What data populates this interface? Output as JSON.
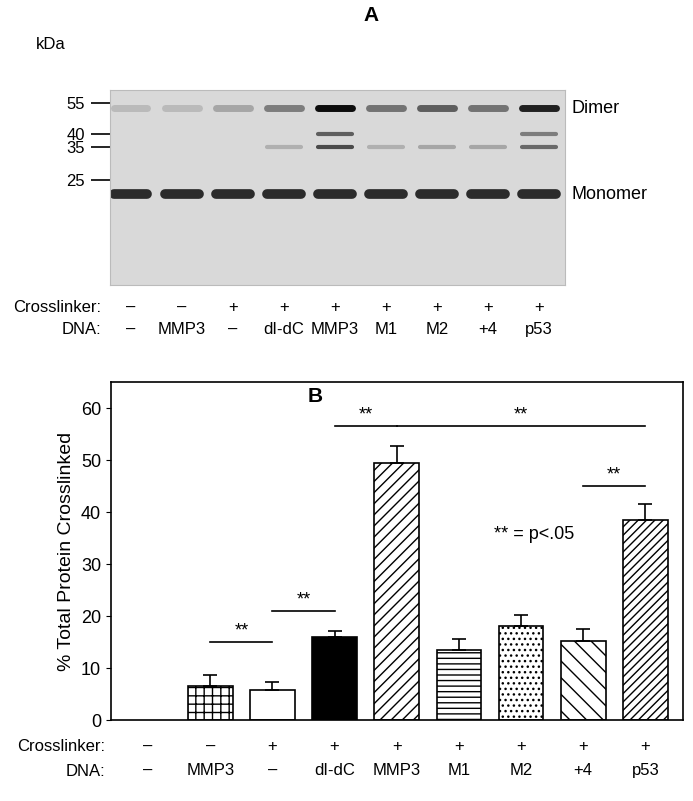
{
  "panel_a": {
    "label": "A",
    "unit": "kDa",
    "markers": [
      55,
      40,
      35,
      25
    ],
    "ylim": [
      8.5,
      62.7
    ],
    "bands": [
      {
        "label": "Dimer",
        "kda": 52
      },
      {
        "label": "Monomer",
        "kda": 21.5
      }
    ],
    "rows": [
      {
        "name": "Crosslinker:",
        "labels": [
          "–",
          "–",
          "+",
          "+",
          "+",
          "+",
          "+",
          "+",
          "+"
        ]
      },
      {
        "name": "DNA:",
        "labels": [
          "–",
          "MMP3",
          "–",
          "dI-dC",
          "MMP3",
          "M1",
          "M2",
          "+4",
          "p53"
        ]
      }
    ]
  },
  "chart_data": {
    "type": "bar",
    "panel_label": "B",
    "y_label": "% Total Protein Crosslinked",
    "categories": [
      "–",
      "MMP3",
      "–",
      "dI-dC",
      "MMP3",
      "M1",
      "M2",
      "+4",
      "p53"
    ],
    "category_label": "DNA:",
    "crosslinker": {
      "name": "Crosslinker:",
      "labels": [
        "–",
        "–",
        "+",
        "+",
        "+",
        "+",
        "+",
        "+",
        "+"
      ]
    },
    "values": [
      null,
      6.5,
      5.8,
      16.0,
      49.5,
      13.5,
      18.0,
      15.3,
      38.5
    ],
    "errors": [
      null,
      2.2,
      1.5,
      1.2,
      3.3,
      2.0,
      2.2,
      2.3,
      3.0
    ],
    "colors": [
      "#ffffff",
      "#ffffff",
      "#ffffff",
      "#000000",
      "#ffffff",
      "#ffffff",
      "#ffffff",
      "#ffffff",
      "#ffffff"
    ],
    "ylim": [
      0,
      65
    ],
    "yticks": [
      0,
      10,
      20,
      30,
      40,
      50,
      60
    ],
    "comparisons": [
      {
        "from": 1,
        "to": 2,
        "y": 15,
        "label": "**"
      },
      {
        "from": 2,
        "to": 3,
        "y": 21,
        "label": "**"
      },
      {
        "from": 3,
        "to": 4,
        "y": 56.5,
        "label": "**"
      },
      {
        "from": 4,
        "to": 8,
        "y": 56.5,
        "label": "**"
      },
      {
        "from": 7,
        "to": 8,
        "y": 45,
        "label": "**"
      }
    ],
    "note": "** = p<.05"
  }
}
